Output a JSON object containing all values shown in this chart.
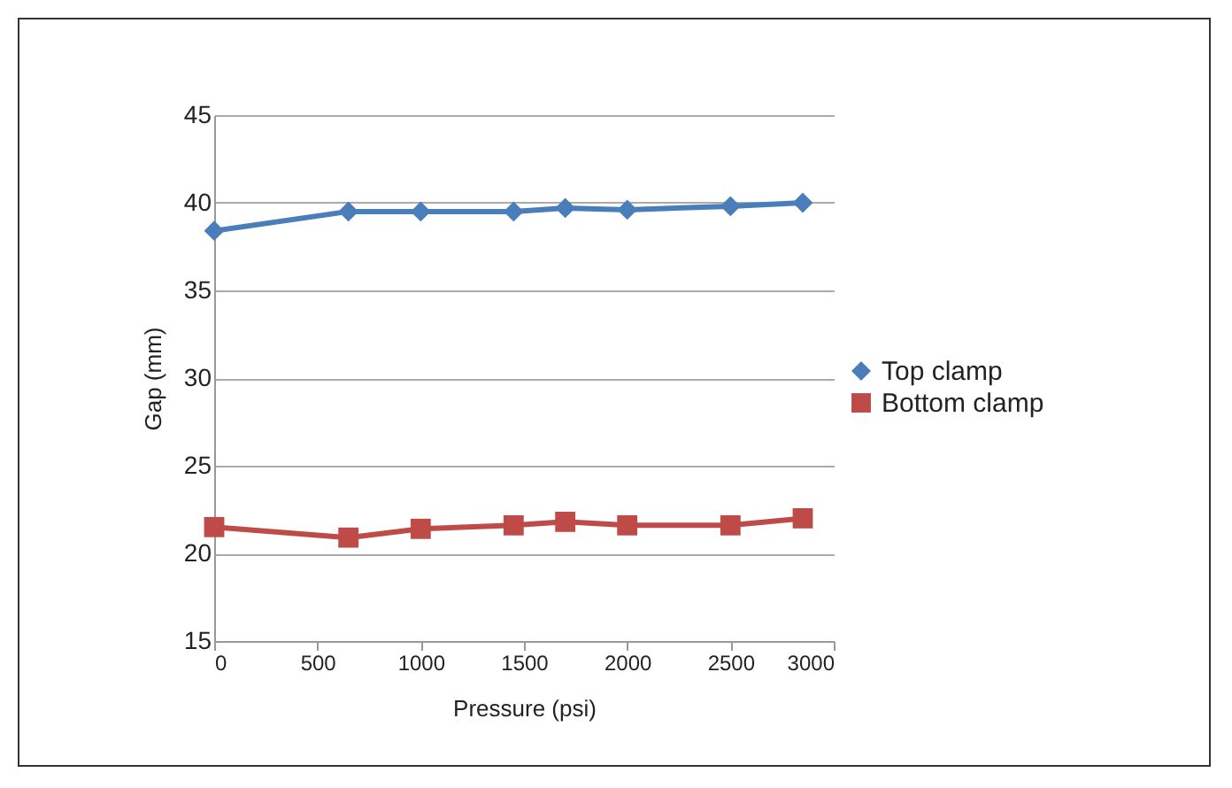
{
  "chart_data": {
    "type": "line",
    "xlabel": "Pressure (psi)",
    "ylabel": "Gap (mm)",
    "x": [
      0,
      650,
      1000,
      1450,
      1700,
      2000,
      2500,
      2850
    ],
    "series": [
      {
        "name": "Top clamp",
        "color": "#4a7ebb",
        "marker": "diamond",
        "values": [
          38.4,
          39.5,
          39.5,
          39.5,
          39.7,
          39.6,
          39.8,
          40.0
        ]
      },
      {
        "name": "Bottom clamp",
        "color": "#be4b48",
        "marker": "square",
        "values": [
          21.5,
          20.9,
          21.4,
          21.6,
          21.8,
          21.6,
          21.6,
          22.0
        ]
      }
    ],
    "xlim": [
      0,
      3000
    ],
    "xticks": [
      0,
      500,
      1000,
      1500,
      2000,
      2500,
      3000
    ],
    "ylim": [
      15,
      45
    ],
    "yticks": [
      15,
      20,
      25,
      30,
      35,
      40,
      45
    ],
    "grid": "y",
    "legend": "right",
    "line_style": "solid"
  }
}
